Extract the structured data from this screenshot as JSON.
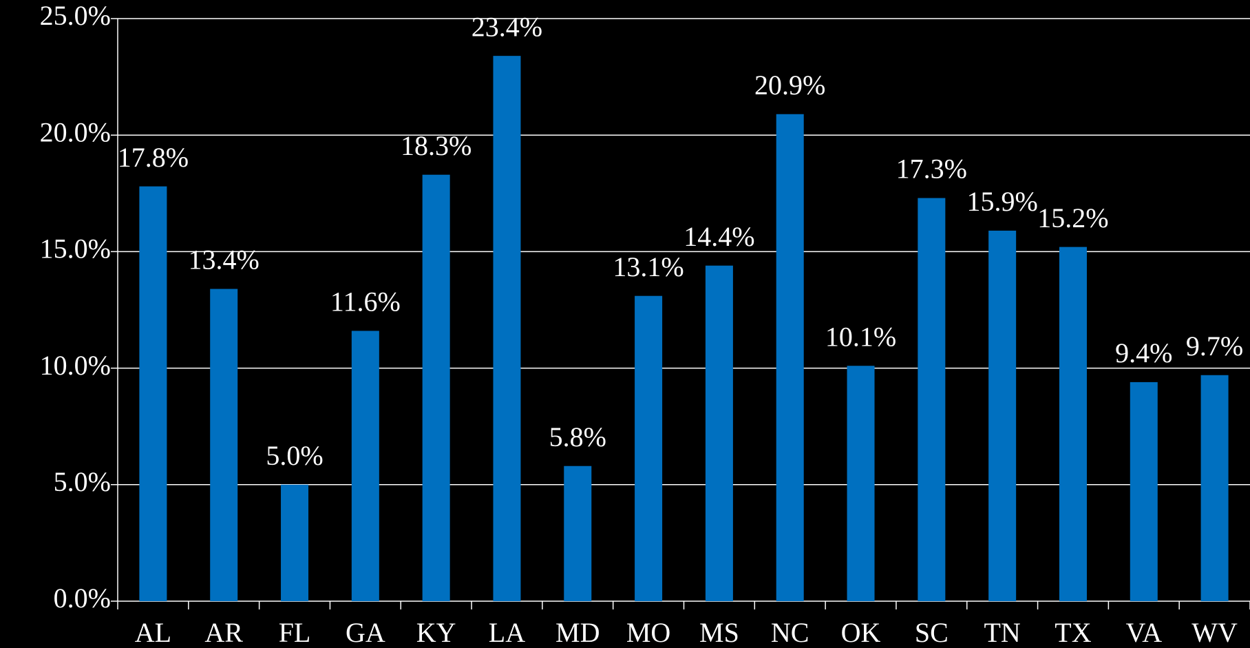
{
  "chart_data": {
    "type": "bar",
    "categories": [
      "AL",
      "AR",
      "FL",
      "GA",
      "KY",
      "LA",
      "MD",
      "MO",
      "MS",
      "NC",
      "OK",
      "SC",
      "TN",
      "TX",
      "VA",
      "WV"
    ],
    "values": [
      17.8,
      13.4,
      5.0,
      11.6,
      18.3,
      23.4,
      5.8,
      13.1,
      14.4,
      20.9,
      10.1,
      17.3,
      15.9,
      15.2,
      9.4,
      9.7
    ],
    "value_labels": [
      "17.8%",
      "13.4%",
      "5.0%",
      "11.6%",
      "18.3%",
      "23.4%",
      "5.8%",
      "13.1%",
      "14.4%",
      "20.9%",
      "10.1%",
      "17.3%",
      "15.9%",
      "15.2%",
      "9.4%",
      "9.7%"
    ],
    "color": "#0070c0",
    "ylim": [
      0,
      25
    ],
    "yticks": [
      {
        "value": 0,
        "label": "0.0%"
      },
      {
        "value": 5,
        "label": "5.0%"
      },
      {
        "value": 10,
        "label": "10.0%"
      },
      {
        "value": 15,
        "label": "15.0%"
      },
      {
        "value": 20,
        "label": "20.0%"
      },
      {
        "value": 25,
        "label": "25.0%"
      }
    ],
    "grid": true
  }
}
